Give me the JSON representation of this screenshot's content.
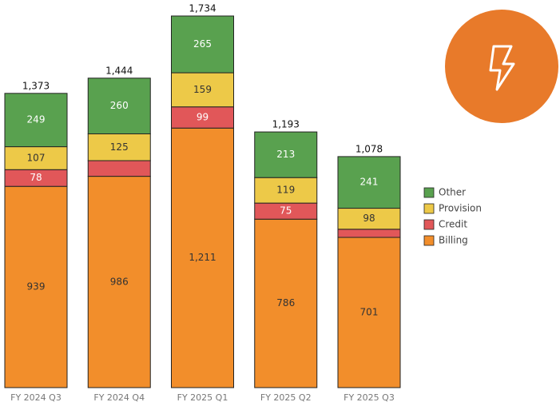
{
  "chart_data": {
    "type": "stacked_bar",
    "categories": [
      "FY 2024 Q3",
      "FY 2024 Q4",
      "FY 2025 Q1",
      "FY 2025 Q2",
      "FY 2025 Q3"
    ],
    "series": [
      {
        "name": "Billing",
        "color": "#f28e2b",
        "text_color": "#333333",
        "values": [
          939,
          986,
          1211,
          786,
          701
        ],
        "value_labels": [
          "939",
          "986",
          "1,211",
          "786",
          "701"
        ]
      },
      {
        "name": "Credit",
        "color": "#e15759",
        "text_color": "#ffffff",
        "values": [
          78,
          73,
          99,
          75,
          38
        ],
        "value_labels": [
          "78",
          null,
          "99",
          "75",
          null
        ]
      },
      {
        "name": "Provision",
        "color": "#edc948",
        "text_color": "#333333",
        "values": [
          107,
          125,
          159,
          119,
          98
        ],
        "value_labels": [
          "107",
          "125",
          "159",
          "119",
          "98"
        ]
      },
      {
        "name": "Other",
        "color": "#59a14f",
        "text_color": "#ffffff",
        "values": [
          249,
          260,
          265,
          213,
          241
        ],
        "value_labels": [
          "249",
          "260",
          "265",
          "213",
          "241"
        ]
      }
    ],
    "totals": [
      1373,
      1444,
      1734,
      1193,
      1078
    ],
    "total_labels": [
      "1,373",
      "1,444",
      "1,734",
      "1,193",
      "1,078"
    ],
    "legend": "right"
  }
}
